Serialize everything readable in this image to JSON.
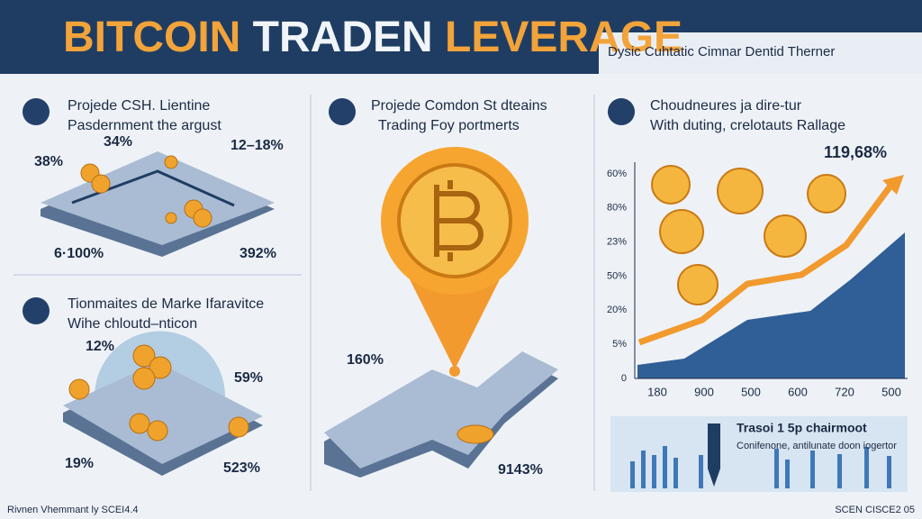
{
  "header": {
    "title_parts": [
      "BITCOIN",
      "TRADEN",
      "LEVERAGE"
    ],
    "subtitle": "Dysic Cuhtatic Cimnar Dentid Therner"
  },
  "panels": [
    {
      "title_lines": [
        "Projede CSH. Lientine",
        "Pasdernment the argust"
      ],
      "labels": [
        "34%",
        "12–18%",
        "38%",
        "6·100%",
        "392%"
      ]
    },
    {
      "title_lines": [
        "Tionmaites de Marke Ifaravitce",
        "Wihe chloutd–nticon"
      ],
      "labels": [
        "12%",
        "59%",
        "19%",
        "523%"
      ]
    },
    {
      "title_lines": [
        "Projede Comdon St dteains",
        "Trading Foy portmerts"
      ],
      "labels": [
        "160%",
        "9143%"
      ]
    },
    {
      "title_lines": [
        "Choudneures ja dire-tur",
        "With duting, crelotauts Rallage"
      ],
      "annotation": "119,68%",
      "y_axis_labels": [
        "60%",
        "80%",
        "23%",
        "50%",
        "20%",
        "5%",
        "0"
      ],
      "x_axis_labels": [
        "180",
        "900",
        "500",
        "600",
        "720",
        "500"
      ]
    }
  ],
  "inset": {
    "title": "Trasoi 1 5p chairmoot",
    "subtitle": "Conifenone, antilunate doon iogertor"
  },
  "footer": {
    "left": "Rivnen Vhemmant ly SCEI4.4",
    "right": "SCEN CISCE2 05"
  }
}
